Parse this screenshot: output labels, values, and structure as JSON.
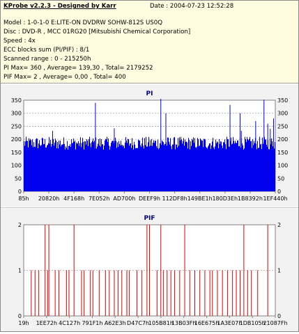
{
  "header": {
    "title": "KProbe v2.2.3 - Designed by Karr",
    "date_label": "Date : 2004-07-23 12:52:28"
  },
  "info_lines": [
    "Model : 1-0-1-0 E:LITE-ON DVDRW SOHW-812S  US0Q",
    "Disc : DVD-R , MCC 01RG20  [Mitsubishi Chemical Corporation]",
    "Speed : 4x",
    "ECC blocks sum (PI/PIF) : 8/1",
    "Scanned range : 0 - 215250h",
    "PI Max= 360 , Average= 139,30 , Total= 2179252",
    "PIF Max= 2 , Average= 0,00 , Total= 400"
  ],
  "colors": {
    "pi_bar": "#0000ee",
    "pif_bar": "#e00000",
    "title": "#000080",
    "plot_bg": "#ffffff",
    "panel_bg": "#f2f2f2"
  },
  "chart_data": [
    {
      "type": "bar",
      "title": "PI",
      "ylim": [
        0,
        350
      ],
      "yticks": [
        0,
        50,
        100,
        150,
        200,
        250,
        300,
        350
      ],
      "xticks": [
        "85h",
        "20820h",
        "4F168h",
        "7E052h",
        "AD700h",
        "DEEF9h",
        "112DF8h",
        "149BE1h",
        "180D3Eh",
        "1B8392h",
        "1EF440h"
      ],
      "baseline_band": [
        160,
        210
      ],
      "spikes": [
        {
          "x": 0.115,
          "value": 232
        },
        {
          "x": 0.285,
          "value": 340
        },
        {
          "x": 0.36,
          "value": 242
        },
        {
          "x": 0.545,
          "value": 355
        },
        {
          "x": 0.565,
          "value": 300
        },
        {
          "x": 0.82,
          "value": 332
        },
        {
          "x": 0.86,
          "value": 300
        },
        {
          "x": 0.865,
          "value": 232
        },
        {
          "x": 0.922,
          "value": 270
        },
        {
          "x": 0.955,
          "value": 352
        },
        {
          "x": 0.97,
          "value": 260
        },
        {
          "x": 0.98,
          "value": 240
        },
        {
          "x": 0.993,
          "value": 280
        }
      ],
      "grid": true
    },
    {
      "type": "bar",
      "title": "PIF",
      "ylim": [
        0,
        2
      ],
      "yticks": [
        0,
        1,
        2
      ],
      "xticks": [
        "19h",
        "1EE72h",
        "4C127h",
        "791F1h",
        "A62E3h",
        "D47C7h",
        "105B81h",
        "13B03Fh",
        "16E675h",
        "1A3E07h",
        "1DB105h",
        "21087Fh"
      ],
      "events": [
        {
          "x": 0.03,
          "value": 1
        },
        {
          "x": 0.045,
          "value": 1
        },
        {
          "x": 0.06,
          "value": 1
        },
        {
          "x": 0.085,
          "value": 2
        },
        {
          "x": 0.095,
          "value": 1
        },
        {
          "x": 0.1,
          "value": 2
        },
        {
          "x": 0.125,
          "value": 1
        },
        {
          "x": 0.14,
          "value": 1
        },
        {
          "x": 0.17,
          "value": 1
        },
        {
          "x": 0.18,
          "value": 1
        },
        {
          "x": 0.2,
          "value": 2
        },
        {
          "x": 0.23,
          "value": 1
        },
        {
          "x": 0.24,
          "value": 1
        },
        {
          "x": 0.265,
          "value": 1
        },
        {
          "x": 0.275,
          "value": 1
        },
        {
          "x": 0.3,
          "value": 1
        },
        {
          "x": 0.325,
          "value": 1
        },
        {
          "x": 0.34,
          "value": 1
        },
        {
          "x": 0.36,
          "value": 1
        },
        {
          "x": 0.375,
          "value": 1
        },
        {
          "x": 0.39,
          "value": 1
        },
        {
          "x": 0.41,
          "value": 1
        },
        {
          "x": 0.42,
          "value": 1
        },
        {
          "x": 0.45,
          "value": 1
        },
        {
          "x": 0.47,
          "value": 1
        },
        {
          "x": 0.49,
          "value": 2
        },
        {
          "x": 0.5,
          "value": 2
        },
        {
          "x": 0.53,
          "value": 1
        },
        {
          "x": 0.545,
          "value": 2
        },
        {
          "x": 0.555,
          "value": 1
        },
        {
          "x": 0.57,
          "value": 1
        },
        {
          "x": 0.585,
          "value": 1
        },
        {
          "x": 0.6,
          "value": 1
        },
        {
          "x": 0.62,
          "value": 1
        },
        {
          "x": 0.64,
          "value": 2
        },
        {
          "x": 0.66,
          "value": 1
        },
        {
          "x": 0.68,
          "value": 1
        },
        {
          "x": 0.7,
          "value": 1
        },
        {
          "x": 0.72,
          "value": 1
        },
        {
          "x": 0.74,
          "value": 1
        },
        {
          "x": 0.75,
          "value": 1
        },
        {
          "x": 0.77,
          "value": 1
        },
        {
          "x": 0.79,
          "value": 1
        },
        {
          "x": 0.81,
          "value": 1
        },
        {
          "x": 0.83,
          "value": 1
        },
        {
          "x": 0.845,
          "value": 1
        },
        {
          "x": 0.86,
          "value": 1
        },
        {
          "x": 0.875,
          "value": 2
        },
        {
          "x": 0.89,
          "value": 1
        },
        {
          "x": 0.905,
          "value": 1
        },
        {
          "x": 0.93,
          "value": 1
        },
        {
          "x": 0.97,
          "value": 2
        }
      ],
      "grid": true
    }
  ]
}
